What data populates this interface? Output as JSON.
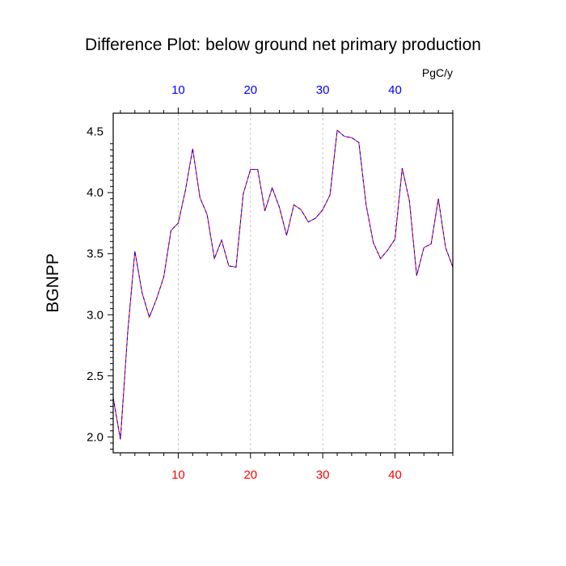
{
  "chart_data": {
    "type": "line",
    "title": "Difference Plot: below ground net primary production",
    "units": "PgC/y",
    "ylabel": "BGNPP",
    "xlabel": "",
    "xlim": [
      1,
      48
    ],
    "ylim": [
      1.87,
      4.65
    ],
    "y_ticks": [
      "2.0",
      "2.5",
      "3.0",
      "3.5",
      "4.0",
      "4.5"
    ],
    "x_ticks_bottom": [
      "10",
      "20",
      "30",
      "40"
    ],
    "x_ticks_top": [
      "10",
      "20",
      "30",
      "40"
    ],
    "grid": "vertical dashed at major x ticks",
    "colors": {
      "bottom_ticks": "#ff0000",
      "top_ticks": "#0000ff",
      "series_a": "#ff0000",
      "series_b": "#0000ff",
      "grid": "#bbbbbb"
    },
    "x": [
      1,
      2,
      3,
      4,
      5,
      6,
      7,
      8,
      9,
      10,
      11,
      12,
      13,
      14,
      15,
      16,
      17,
      18,
      19,
      20,
      21,
      22,
      23,
      24,
      25,
      26,
      27,
      28,
      29,
      30,
      31,
      32,
      33,
      34,
      35,
      36,
      37,
      38,
      39,
      40,
      41,
      42,
      43,
      44,
      45,
      46,
      47,
      48
    ],
    "series": [
      {
        "values": [
          2.32,
          1.98,
          2.85,
          3.52,
          3.18,
          2.98,
          3.13,
          3.31,
          3.69,
          3.75,
          4.02,
          4.36,
          3.96,
          3.82,
          3.46,
          3.61,
          3.4,
          3.39,
          3.99,
          4.19,
          4.19,
          3.85,
          4.04,
          3.88,
          3.65,
          3.9,
          3.86,
          3.76,
          3.79,
          3.86,
          3.98,
          4.51,
          4.46,
          4.45,
          4.41,
          3.9,
          3.59,
          3.46,
          3.53,
          3.62,
          4.2,
          3.93,
          3.32,
          3.55,
          3.58,
          3.95,
          3.55,
          3.39
        ]
      },
      {
        "values": [
          2.32,
          1.98,
          2.85,
          3.52,
          3.18,
          2.98,
          3.13,
          3.31,
          3.69,
          3.75,
          4.02,
          4.36,
          3.96,
          3.82,
          3.46,
          3.61,
          3.4,
          3.39,
          3.99,
          4.19,
          4.19,
          3.85,
          4.04,
          3.88,
          3.65,
          3.9,
          3.86,
          3.76,
          3.79,
          3.86,
          3.98,
          4.51,
          4.46,
          4.45,
          4.41,
          3.9,
          3.59,
          3.46,
          3.53,
          3.62,
          4.2,
          3.93,
          3.32,
          3.55,
          3.58,
          3.95,
          3.55,
          3.39
        ]
      }
    ]
  }
}
